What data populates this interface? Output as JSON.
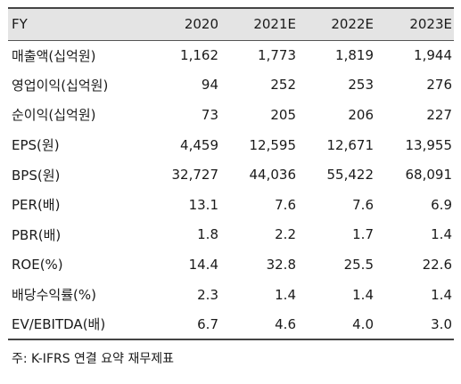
{
  "table": {
    "header": [
      "FY",
      "2020",
      "2021E",
      "2022E",
      "2023E"
    ],
    "rows": [
      {
        "label": "매출액(십억원)",
        "values": [
          "1,162",
          "1,773",
          "1,819",
          "1,944"
        ]
      },
      {
        "label": "영업이익(십억원)",
        "values": [
          "94",
          "252",
          "253",
          "276"
        ]
      },
      {
        "label": "순이익(십억원)",
        "values": [
          "73",
          "205",
          "206",
          "227"
        ]
      },
      {
        "label": "EPS(원)",
        "values": [
          "4,459",
          "12,595",
          "12,671",
          "13,955"
        ]
      },
      {
        "label": "BPS(원)",
        "values": [
          "32,727",
          "44,036",
          "55,422",
          "68,091"
        ]
      },
      {
        "label": "PER(배)",
        "values": [
          "13.1",
          "7.6",
          "7.6",
          "6.9"
        ]
      },
      {
        "label": "PBR(배)",
        "values": [
          "1.8",
          "2.2",
          "1.7",
          "1.4"
        ]
      },
      {
        "label": "ROE(%)",
        "values": [
          "14.4",
          "32.8",
          "25.5",
          "22.6"
        ]
      },
      {
        "label": "배당수익률(%)",
        "values": [
          "2.3",
          "1.4",
          "1.4",
          "1.4"
        ]
      },
      {
        "label": "EV/EBITDA(배)",
        "values": [
          "6.7",
          "4.6",
          "4.0",
          "3.0"
        ]
      }
    ]
  },
  "note": "주: K-IFRS 연결 요약 재무제표",
  "colors": {
    "header_background": "#e4e4e4",
    "rule": "#444444",
    "text": "#1a1a1a"
  }
}
